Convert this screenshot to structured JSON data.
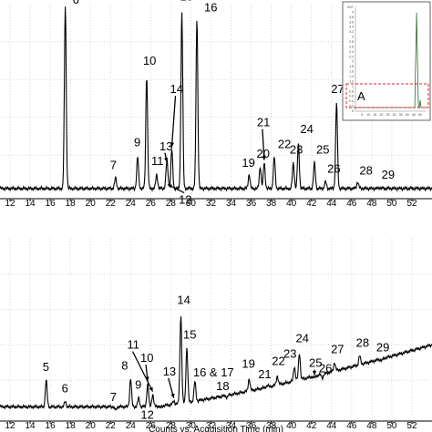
{
  "chart_data": [
    {
      "type": "line",
      "panel": "top",
      "x_ticks": [
        12,
        14,
        16,
        18,
        20,
        22,
        24,
        26,
        28,
        30,
        32,
        34,
        36,
        38,
        40,
        42,
        44,
        46,
        48,
        50,
        52
      ],
      "xlim": [
        11,
        54
      ],
      "ylim": [
        0,
        1
      ],
      "grid": true,
      "baseline": 0.025,
      "peaks": [
        {
          "label": "6",
          "x": 17.5,
          "y": 0.99
        },
        {
          "label": "7",
          "x": 22.5,
          "y": 0.08
        },
        {
          "label": "9",
          "x": 24.7,
          "y": 0.19
        },
        {
          "label": "10",
          "x": 25.6,
          "y": 0.62
        },
        {
          "label": "11",
          "x": 26.6,
          "y": 0.1
        },
        {
          "label": "12",
          "x": 27.7,
          "y": 0.06
        },
        {
          "label": "13",
          "x": 27.6,
          "y": 0.15
        },
        {
          "label": "14",
          "x": 28.1,
          "y": 0.23
        },
        {
          "label": "15",
          "x": 29.1,
          "y": 0.96
        },
        {
          "label": "16",
          "x": 30.6,
          "y": 0.92
        },
        {
          "label": "19",
          "x": 35.8,
          "y": 0.1
        },
        {
          "label": "20",
          "x": 36.9,
          "y": 0.14
        },
        {
          "label": "21",
          "x": 37.3,
          "y": 0.16
        },
        {
          "label": "22",
          "x": 38.3,
          "y": 0.19
        },
        {
          "label": "23",
          "x": 40.2,
          "y": 0.16
        },
        {
          "label": "24",
          "x": 40.7,
          "y": 0.26
        },
        {
          "label": "25",
          "x": 42.3,
          "y": 0.16
        },
        {
          "label": "26",
          "x": 43.4,
          "y": 0.06
        },
        {
          "label": "27",
          "x": 44.5,
          "y": 0.48
        },
        {
          "label": "28",
          "x": 46.6,
          "y": 0.06
        },
        {
          "label": "29",
          "x": 48.8,
          "y": 0.03
        }
      ],
      "inset": {
        "label": "A",
        "y_ticks": [
          "x10⁷",
          "4",
          "3.8",
          "3.6",
          "3.4",
          "3.2",
          "3",
          "2.8",
          "2.6",
          "2.4",
          "2.2",
          "2",
          "1.8",
          "1.6",
          "1.4",
          "1.2",
          "1",
          "0.8",
          "0.6",
          "0.4",
          "0.2",
          "0"
        ],
        "x_ticks": [
          "5",
          "10",
          "15",
          "20",
          "25",
          "30",
          "35",
          "40",
          "45",
          "50"
        ]
      }
    },
    {
      "type": "line",
      "panel": "bottom",
      "x_ticks": [
        12,
        14,
        16,
        18,
        20,
        22,
        24,
        26,
        28,
        30,
        32,
        34,
        36,
        38,
        40,
        42,
        44,
        46,
        48,
        50,
        52
      ],
      "xlim": [
        11,
        54
      ],
      "ylim": [
        0,
        1
      ],
      "grid": true,
      "xlabel": "Counts vs. Acquisition Time (min)",
      "baseline": 0.05,
      "drift_end": 0.4,
      "peaks": [
        {
          "label": "5",
          "x": 15.6,
          "y": 0.2
        },
        {
          "label": "6",
          "x": 17.5,
          "y": 0.08
        },
        {
          "label": "7",
          "x": 22.5,
          "y": 0.03
        },
        {
          "label": "8",
          "x": 24.0,
          "y": 0.21
        },
        {
          "label": "9",
          "x": 24.8,
          "y": 0.1
        },
        {
          "label": "10",
          "x": 25.7,
          "y": 0.18
        },
        {
          "label": "11",
          "x": 26.2,
          "y": 0.12
        },
        {
          "label": "12",
          "x": 27.0,
          "y": 0.04
        },
        {
          "label": "13",
          "x": 28.3,
          "y": 0.07
        },
        {
          "label": "14",
          "x": 29.0,
          "y": 0.55
        },
        {
          "label": "15",
          "x": 29.6,
          "y": 0.36
        },
        {
          "label": "16 & 17",
          "x": 30.4,
          "y": 0.16
        },
        {
          "label": "18",
          "x": 33.6,
          "y": 0.04
        },
        {
          "label": "19",
          "x": 35.8,
          "y": 0.12
        },
        {
          "label": "21",
          "x": 37.6,
          "y": 0.06
        },
        {
          "label": "22",
          "x": 38.6,
          "y": 0.1
        },
        {
          "label": "23",
          "x": 40.3,
          "y": 0.13
        },
        {
          "label": "24",
          "x": 40.8,
          "y": 0.2
        },
        {
          "label": "25",
          "x": 42.3,
          "y": 0.04
        },
        {
          "label": "26",
          "x": 43.1,
          "y": 0.03
        },
        {
          "label": "27",
          "x": 44.3,
          "y": 0.1
        },
        {
          "label": "28",
          "x": 46.8,
          "y": 0.1
        },
        {
          "label": "29",
          "x": 49.0,
          "y": 0.04
        }
      ]
    }
  ]
}
